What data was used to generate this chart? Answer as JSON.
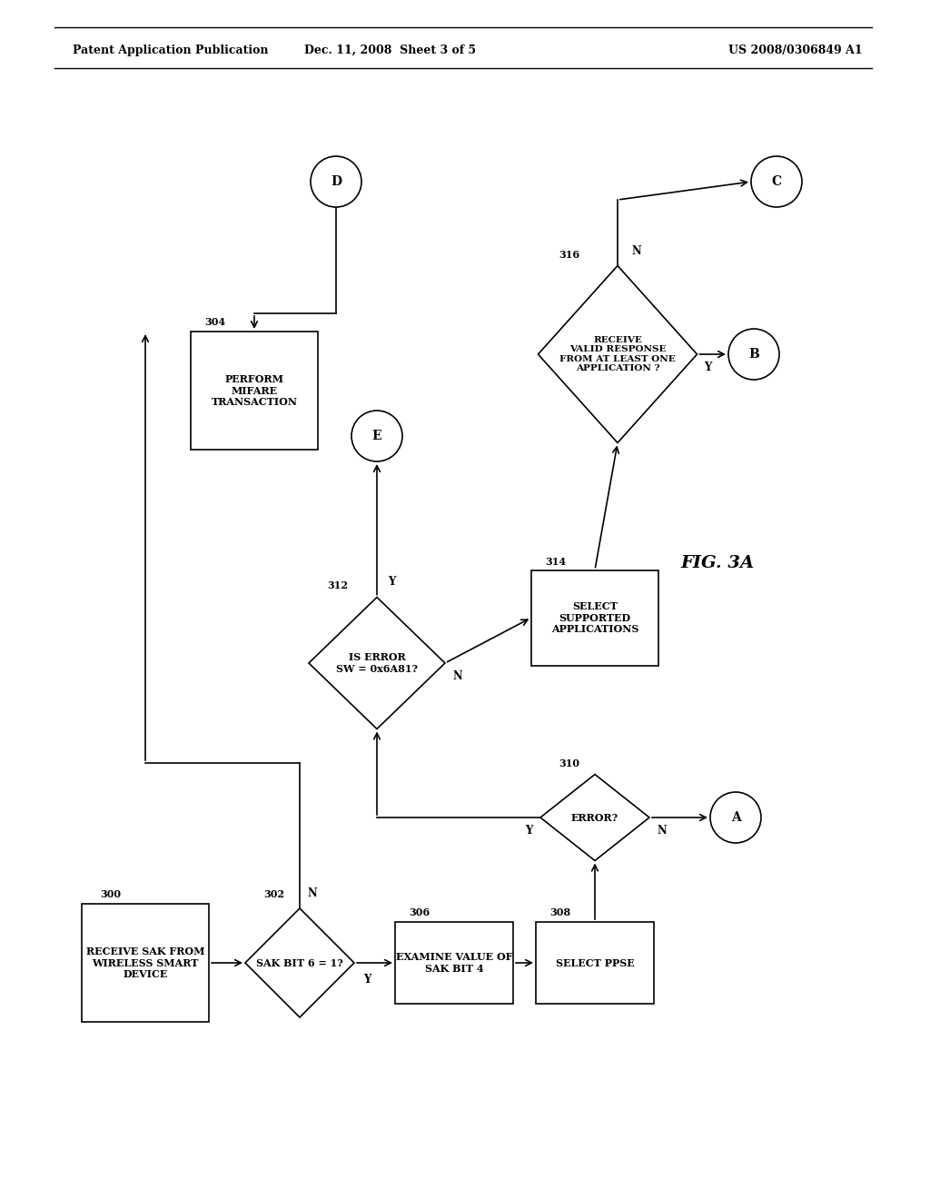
{
  "title_left": "Patent Application Publication",
  "title_center": "Dec. 11, 2008  Sheet 3 of 5",
  "title_right": "US 2008/0306849 A1",
  "fig_label": "FIG. 3A",
  "background": "#ffffff"
}
